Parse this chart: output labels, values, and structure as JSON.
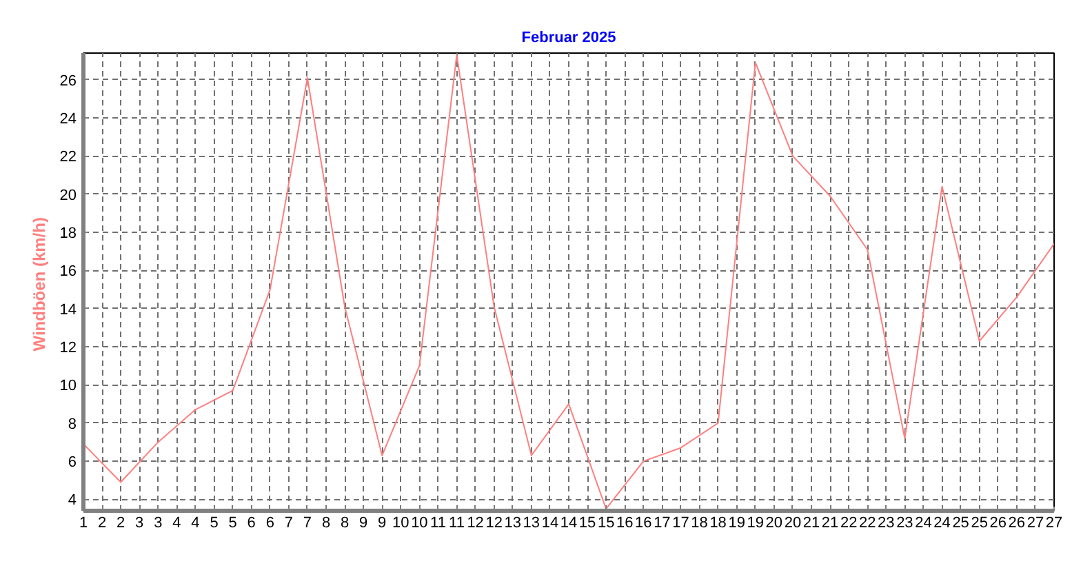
{
  "chart_data": {
    "type": "line",
    "title": "Februar 2025",
    "ylabel": "Windböen  (km/h)",
    "x": [
      1,
      2,
      3,
      4,
      5,
      6,
      7,
      8,
      9,
      10,
      11,
      12,
      13,
      14,
      15,
      16,
      17,
      18,
      19,
      20,
      21,
      22,
      23,
      24,
      25,
      26,
      27
    ],
    "series": [
      {
        "color": "#ff7f7f",
        "values": [
          6.9,
          4.9,
          7.0,
          8.7,
          9.7,
          15.0,
          26.1,
          14.1,
          6.3,
          11.0,
          27.3,
          14.1,
          6.3,
          9.0,
          3.5,
          6.0,
          6.7,
          8.0,
          26.9,
          22.0,
          19.9,
          17.1,
          7.2,
          20.4,
          12.3,
          14.6,
          17.4
        ]
      }
    ],
    "xlim": [
      1,
      27
    ],
    "ylim": [
      3.4,
      27.4
    ],
    "xticks": [
      1,
      {
        "value": 1.5,
        "label": "2"
      },
      2,
      {
        "value": 2.5,
        "label": "3"
      },
      3,
      {
        "value": 3.5,
        "label": "4"
      },
      4,
      {
        "value": 4.5,
        "label": "5"
      },
      5,
      {
        "value": 5.5,
        "label": "6"
      },
      6,
      {
        "value": 6.5,
        "label": "7"
      },
      7,
      {
        "value": 7.5,
        "label": "8"
      },
      8,
      {
        "value": 8.5,
        "label": "9"
      },
      9,
      {
        "value": 9.5,
        "label": "10"
      },
      10,
      {
        "value": 10.5,
        "label": "11"
      },
      11,
      {
        "value": 11.5,
        "label": "12"
      },
      12,
      {
        "value": 12.5,
        "label": "13"
      },
      13,
      {
        "value": 13.5,
        "label": "14"
      },
      14,
      {
        "value": 14.5,
        "label": "15"
      },
      15,
      {
        "value": 15.5,
        "label": "16"
      },
      16,
      {
        "value": 16.5,
        "label": "17"
      },
      17,
      {
        "value": 17.5,
        "label": "18"
      },
      18,
      {
        "value": 18.5,
        "label": "19"
      },
      19,
      {
        "value": 19.5,
        "label": "20"
      },
      20,
      {
        "value": 20.5,
        "label": "21"
      },
      21,
      {
        "value": 21.5,
        "label": "22"
      },
      22,
      {
        "value": 22.5,
        "label": "23"
      },
      23,
      {
        "value": 23.5,
        "label": "24"
      },
      24,
      {
        "value": 24.5,
        "label": "25"
      },
      25,
      {
        "value": 25.5,
        "label": "26"
      },
      26,
      {
        "value": 26.5,
        "label": "27"
      },
      27
    ],
    "yticks": [
      4,
      6,
      8,
      10,
      12,
      14,
      16,
      18,
      20,
      22,
      24,
      26
    ],
    "grid": true,
    "marker": "none",
    "line_style": "solid"
  }
}
